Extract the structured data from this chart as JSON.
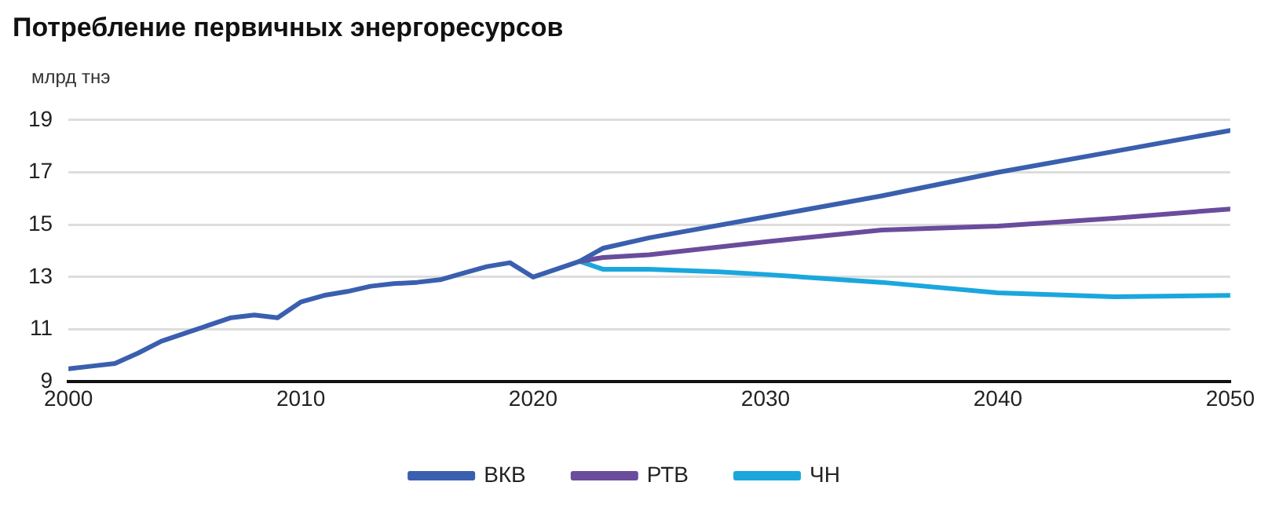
{
  "chart_data": {
    "type": "line",
    "title": "Потребление первичных энергоресурсов",
    "ylabel": "млрд тнэ",
    "xlim": [
      2000,
      2050
    ],
    "xticks": [
      2000,
      2010,
      2020,
      2030,
      2040,
      2050
    ],
    "ylim": [
      9,
      19
    ],
    "yticks": [
      9,
      11,
      13,
      15,
      17,
      19
    ],
    "grid": "y",
    "legend": "bottom",
    "marker": "none",
    "line_style": "solid",
    "series": [
      {
        "name": "ВКВ",
        "color": "#3a5fae",
        "x": [
          2000,
          2001,
          2002,
          2003,
          2004,
          2005,
          2006,
          2007,
          2008,
          2009,
          2010,
          2011,
          2012,
          2013,
          2014,
          2015,
          2016,
          2017,
          2018,
          2019,
          2020,
          2021,
          2022,
          2023,
          2025,
          2030,
          2035,
          2040,
          2045,
          2050
        ],
        "values": [
          9.5,
          9.6,
          9.7,
          10.1,
          10.55,
          10.85,
          11.15,
          11.45,
          11.55,
          11.45,
          12.05,
          12.3,
          12.45,
          12.65,
          12.75,
          12.8,
          12.9,
          13.15,
          13.4,
          13.55,
          13.0,
          13.3,
          13.6,
          14.1,
          14.5,
          15.3,
          16.1,
          17.0,
          17.8,
          18.6
        ]
      },
      {
        "name": "РТВ",
        "color": "#6a4c9c",
        "x": [
          2022,
          2023,
          2025,
          2030,
          2035,
          2040,
          2045,
          2050
        ],
        "values": [
          13.6,
          13.75,
          13.85,
          14.35,
          14.8,
          14.95,
          15.25,
          15.6
        ]
      },
      {
        "name": "ЧН",
        "color": "#1ba7dd",
        "x": [
          2022,
          2023,
          2025,
          2028,
          2030,
          2035,
          2040,
          2045,
          2050
        ],
        "values": [
          13.6,
          13.3,
          13.3,
          13.2,
          13.1,
          12.8,
          12.4,
          12.25,
          12.3
        ]
      }
    ]
  }
}
